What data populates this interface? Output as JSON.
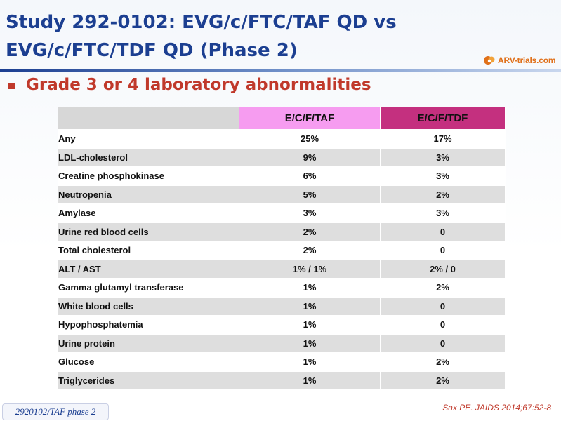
{
  "slide": {
    "title_line1": "Study 292-0102: EVG/c/FTC/TAF QD vs",
    "title_line2": "EVG/c/FTC/TDF QD (Phase 2)",
    "subtitle": "Grade 3 or 4 laboratory abnormalities",
    "logo_text": "ARV-trials.com",
    "footer_tag": "2920102/TAF phase 2",
    "citation": "Sax PE. JAIDS 2014;67:52-8"
  },
  "table": {
    "headers": [
      "",
      "E/C/F/TAF",
      "E/C/F/TDF"
    ],
    "rows": [
      [
        "Any",
        "25%",
        "17%"
      ],
      [
        "LDL-cholesterol",
        "9%",
        "3%"
      ],
      [
        "Creatine phosphokinase",
        "6%",
        "3%"
      ],
      [
        "Neutropenia",
        "5%",
        "2%"
      ],
      [
        "Amylase",
        "3%",
        "3%"
      ],
      [
        "Urine red blood cells",
        "2%",
        "0"
      ],
      [
        "Total cholesterol",
        "2%",
        "0"
      ],
      [
        "ALT / AST",
        "1% / 1%",
        "2% / 0"
      ],
      [
        "Gamma glutamyl transferase",
        "1%",
        "2%"
      ],
      [
        "White blood cells",
        "1%",
        "0"
      ],
      [
        "Hypophosphatemia",
        "1%",
        "0"
      ],
      [
        "Urine protein",
        "1%",
        "0"
      ],
      [
        "Glucose",
        "1%",
        "2%"
      ],
      [
        "Triglycerides",
        "1%",
        "2%"
      ]
    ]
  },
  "colors": {
    "title": "#1c3f91",
    "accent_red": "#c0392b",
    "taf_header": "#f69cf0",
    "tdf_header": "#c4307f",
    "row_shade": "#dedede"
  },
  "icons": [
    "arv-trials-logo-icon",
    "square-bullet-icon"
  ]
}
